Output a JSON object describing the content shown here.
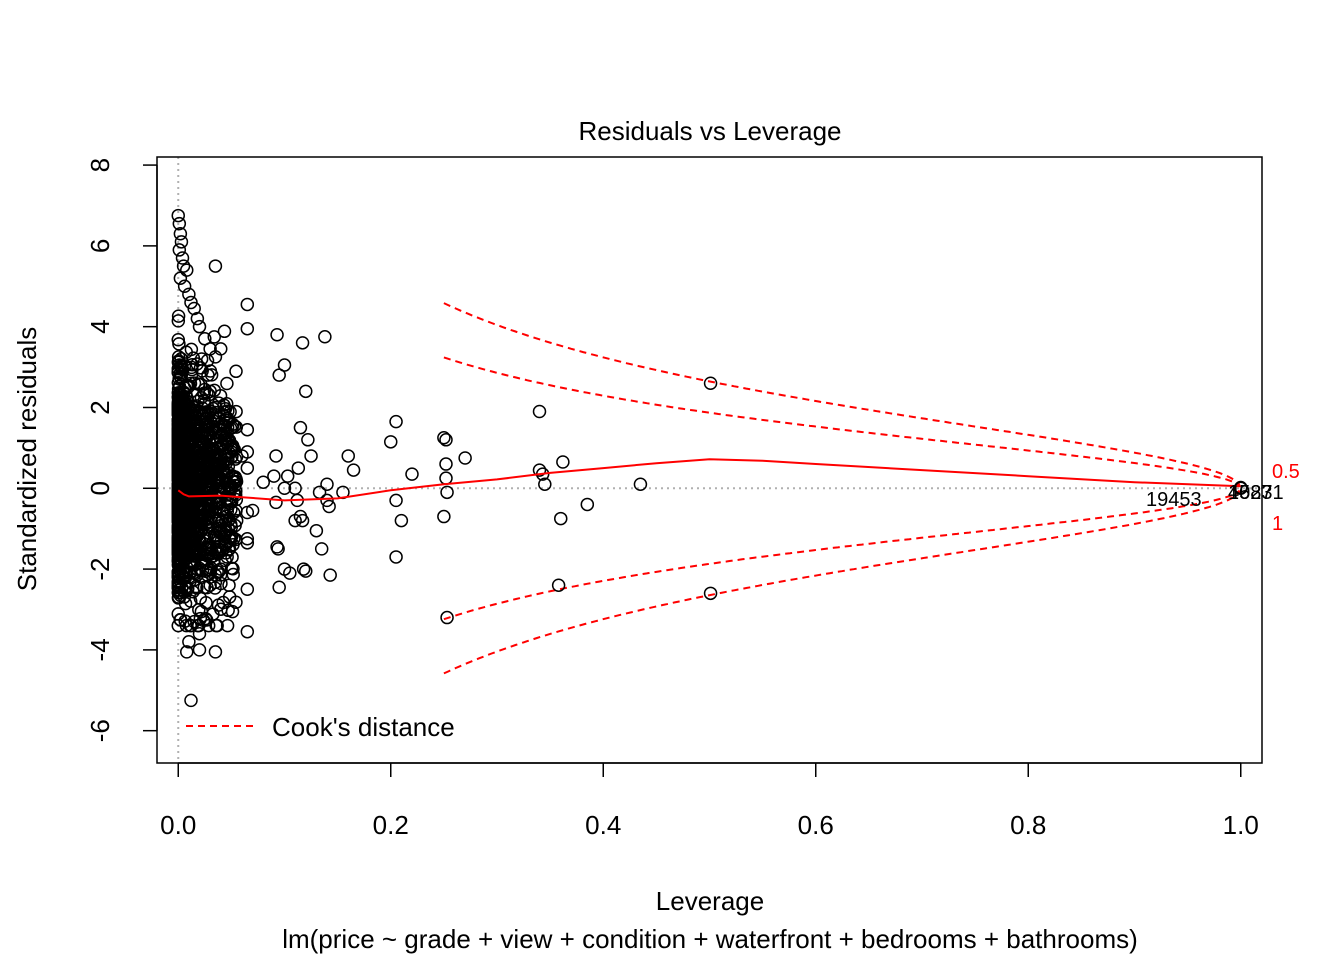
{
  "chart_data": {
    "type": "scatter",
    "title": "Residuals vs Leverage",
    "xlabel": "Leverage",
    "ylabel": "Standardized residuals",
    "subtitle": "lm(price ~ grade + view + condition + waterfront + bedrooms + bathrooms)",
    "xlim": [
      -0.02,
      1.02
    ],
    "ylim": [
      -6.8,
      8.2
    ],
    "x_ticks": [
      "0.0",
      "0.2",
      "0.4",
      "0.6",
      "0.8",
      "1.0"
    ],
    "y_ticks": [
      "-6",
      "-4",
      "-2",
      "0",
      "2",
      "4",
      "6",
      "8"
    ],
    "point_labels": [
      "19453",
      "15871",
      "4023"
    ],
    "cook_contours": [
      "0.5",
      "1"
    ],
    "legend": {
      "label": "Cook's distance",
      "placement": "bottom-left"
    },
    "colors": {
      "points": "#000000",
      "smooth": "#ff0000",
      "cook": "#ff0000",
      "reference": "#b0b0b0"
    },
    "series": [
      {
        "name": "observations",
        "points": [
          [
            0.0,
            6.75
          ],
          [
            0.001,
            6.55
          ],
          [
            0.002,
            6.3
          ],
          [
            0.003,
            6.1
          ],
          [
            0.001,
            5.9
          ],
          [
            0.004,
            5.7
          ],
          [
            0.005,
            5.5
          ],
          [
            0.008,
            5.4
          ],
          [
            0.002,
            5.2
          ],
          [
            0.006,
            5.0
          ],
          [
            0.01,
            4.8
          ],
          [
            0.012,
            4.6
          ],
          [
            0.015,
            4.45
          ],
          [
            0.018,
            4.2
          ],
          [
            0.02,
            4.0
          ],
          [
            0.025,
            3.7
          ],
          [
            0.03,
            3.45
          ],
          [
            0.035,
            5.5
          ],
          [
            0.04,
            3.45
          ],
          [
            0.022,
            3.2
          ],
          [
            0.028,
            2.8
          ],
          [
            0.03,
            2.4
          ],
          [
            0.035,
            2.0
          ],
          [
            0.04,
            1.6
          ],
          [
            0.045,
            1.2
          ],
          [
            0.05,
            0.9
          ],
          [
            0.015,
            -3.3
          ],
          [
            0.02,
            -3.6
          ],
          [
            0.01,
            -3.8
          ],
          [
            0.008,
            -4.05
          ],
          [
            0.02,
            -4.0
          ],
          [
            0.035,
            -4.05
          ],
          [
            0.012,
            -5.25
          ],
          [
            0.03,
            -2.4
          ],
          [
            0.04,
            -2.0
          ],
          [
            0.045,
            -1.6
          ],
          [
            0.05,
            -1.2
          ],
          [
            0.055,
            -0.8
          ],
          [
            0.06,
            0.8
          ],
          [
            0.065,
            4.55
          ],
          [
            0.065,
            3.95
          ],
          [
            0.065,
            1.45
          ],
          [
            0.065,
            0.9
          ],
          [
            0.065,
            0.5
          ],
          [
            0.065,
            -0.6
          ],
          [
            0.065,
            -1.25
          ],
          [
            0.065,
            -1.35
          ],
          [
            0.065,
            -2.5
          ],
          [
            0.065,
            -3.55
          ],
          [
            0.07,
            -0.55
          ],
          [
            0.08,
            0.15
          ],
          [
            0.09,
            0.3
          ],
          [
            0.092,
            0.8
          ],
          [
            0.093,
            3.8
          ],
          [
            0.095,
            2.8
          ],
          [
            0.1,
            3.05
          ],
          [
            0.092,
            -0.35
          ],
          [
            0.093,
            -1.45
          ],
          [
            0.094,
            -1.5
          ],
          [
            0.095,
            -2.45
          ],
          [
            0.1,
            -2.0
          ],
          [
            0.1,
            0.0
          ],
          [
            0.103,
            0.3
          ],
          [
            0.105,
            -2.1
          ],
          [
            0.11,
            0.0
          ],
          [
            0.11,
            -0.8
          ],
          [
            0.112,
            -0.3
          ],
          [
            0.113,
            0.5
          ],
          [
            0.115,
            1.5
          ],
          [
            0.117,
            3.6
          ],
          [
            0.118,
            -2.0
          ],
          [
            0.12,
            2.4
          ],
          [
            0.12,
            -2.05
          ],
          [
            0.122,
            1.2
          ],
          [
            0.115,
            -0.7
          ],
          [
            0.117,
            -0.8
          ],
          [
            0.125,
            0.8
          ],
          [
            0.13,
            -1.05
          ],
          [
            0.133,
            -0.1
          ],
          [
            0.135,
            -1.5
          ],
          [
            0.138,
            3.75
          ],
          [
            0.14,
            0.1
          ],
          [
            0.14,
            -0.3
          ],
          [
            0.142,
            -0.45
          ],
          [
            0.143,
            -2.15
          ],
          [
            0.155,
            -0.1
          ],
          [
            0.16,
            0.8
          ],
          [
            0.165,
            0.45
          ],
          [
            0.2,
            1.15
          ],
          [
            0.205,
            1.65
          ],
          [
            0.205,
            -1.7
          ],
          [
            0.205,
            -0.3
          ],
          [
            0.21,
            -0.8
          ],
          [
            0.22,
            0.35
          ],
          [
            0.25,
            1.25
          ],
          [
            0.252,
            1.2
          ],
          [
            0.252,
            0.6
          ],
          [
            0.252,
            0.25
          ],
          [
            0.253,
            -0.1
          ],
          [
            0.25,
            -0.7
          ],
          [
            0.253,
            -3.2
          ],
          [
            0.27,
            0.75
          ],
          [
            0.34,
            1.9
          ],
          [
            0.34,
            0.45
          ],
          [
            0.343,
            0.35
          ],
          [
            0.345,
            0.1
          ],
          [
            0.358,
            -2.4
          ],
          [
            0.36,
            -0.75
          ],
          [
            0.362,
            0.65
          ],
          [
            0.385,
            -0.4
          ],
          [
            0.435,
            0.1
          ],
          [
            0.501,
            2.6
          ],
          [
            0.501,
            -2.6
          ],
          [
            1.0,
            0.0
          ],
          [
            1.0,
            0.02
          ]
        ]
      }
    ],
    "smooth_line": [
      [
        0.0,
        -0.05
      ],
      [
        0.005,
        -0.15
      ],
      [
        0.01,
        -0.2
      ],
      [
        0.04,
        -0.18
      ],
      [
        0.06,
        -0.22
      ],
      [
        0.1,
        -0.3
      ],
      [
        0.15,
        -0.25
      ],
      [
        0.2,
        -0.05
      ],
      [
        0.25,
        0.1
      ],
      [
        0.3,
        0.22
      ],
      [
        0.35,
        0.38
      ],
      [
        0.4,
        0.5
      ],
      [
        0.45,
        0.62
      ],
      [
        0.5,
        0.72
      ],
      [
        0.55,
        0.68
      ],
      [
        0.6,
        0.6
      ],
      [
        0.7,
        0.45
      ],
      [
        0.8,
        0.3
      ],
      [
        0.9,
        0.15
      ],
      [
        1.0,
        0.05
      ]
    ]
  }
}
